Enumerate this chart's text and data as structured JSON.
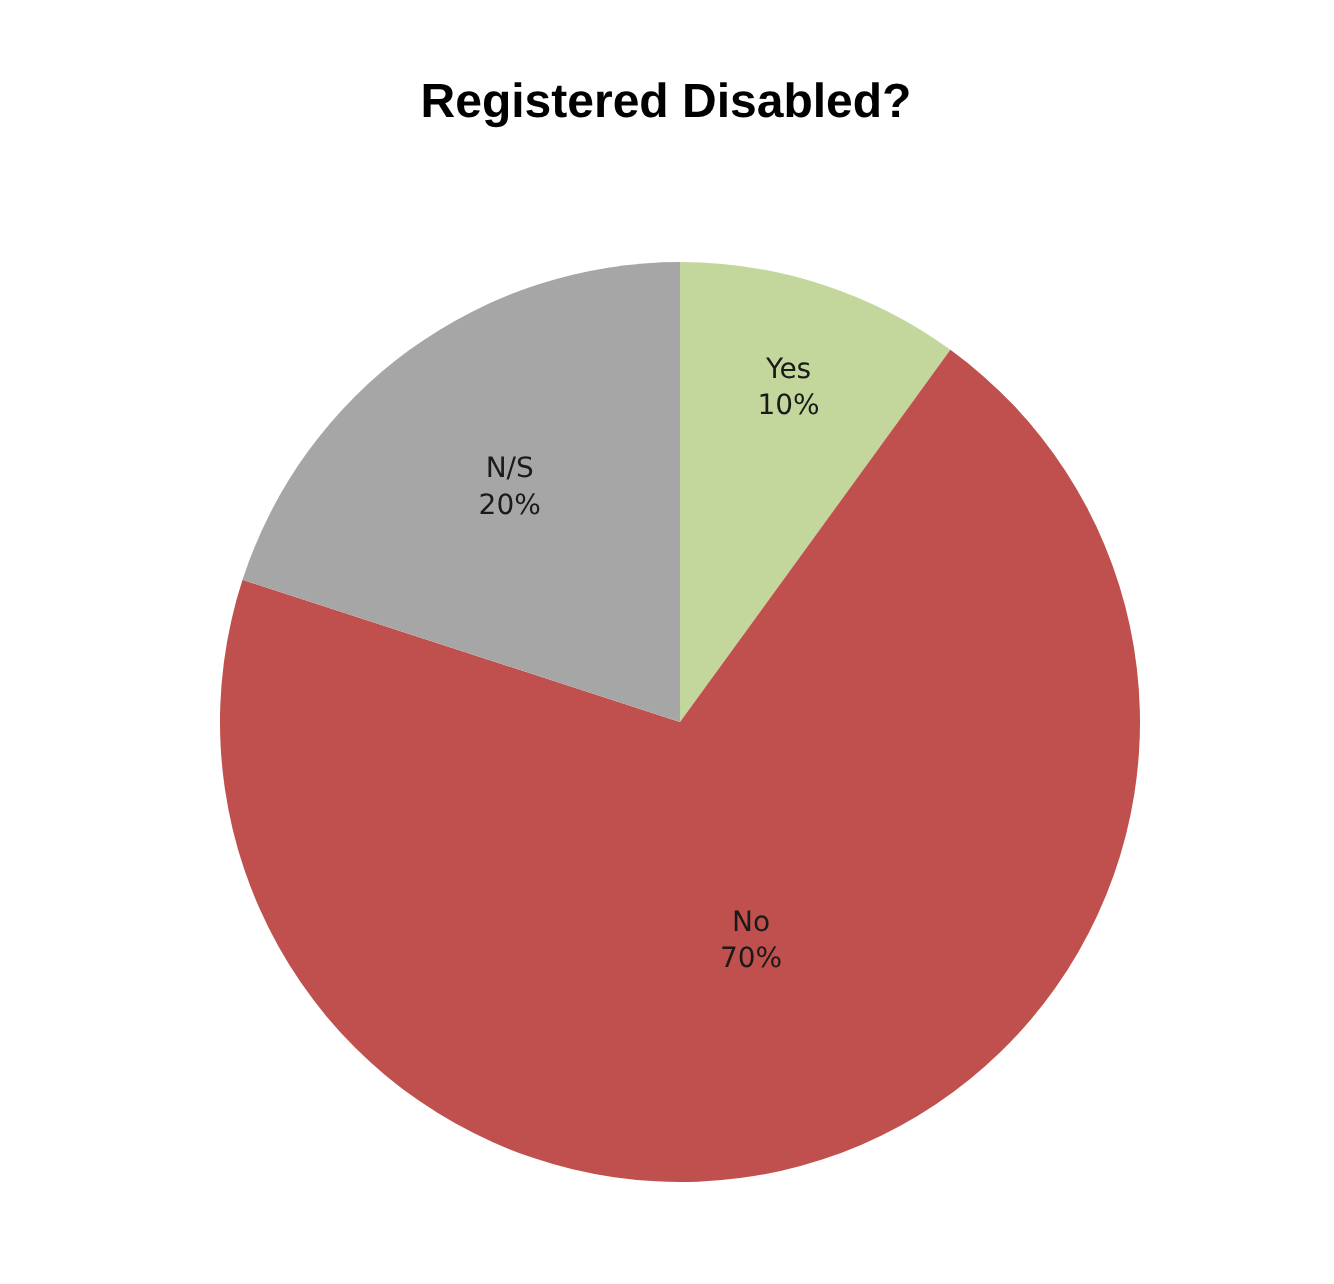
{
  "chart_data": {
    "type": "pie",
    "title": "Registered Disabled?",
    "categories": [
      "Yes",
      "No",
      "N/S"
    ],
    "values": [
      10,
      70,
      20
    ],
    "value_labels": [
      "10%",
      "70%",
      "20%"
    ],
    "colors": [
      "#c3d69b",
      "#c0504d",
      "#a6a6a6"
    ]
  }
}
